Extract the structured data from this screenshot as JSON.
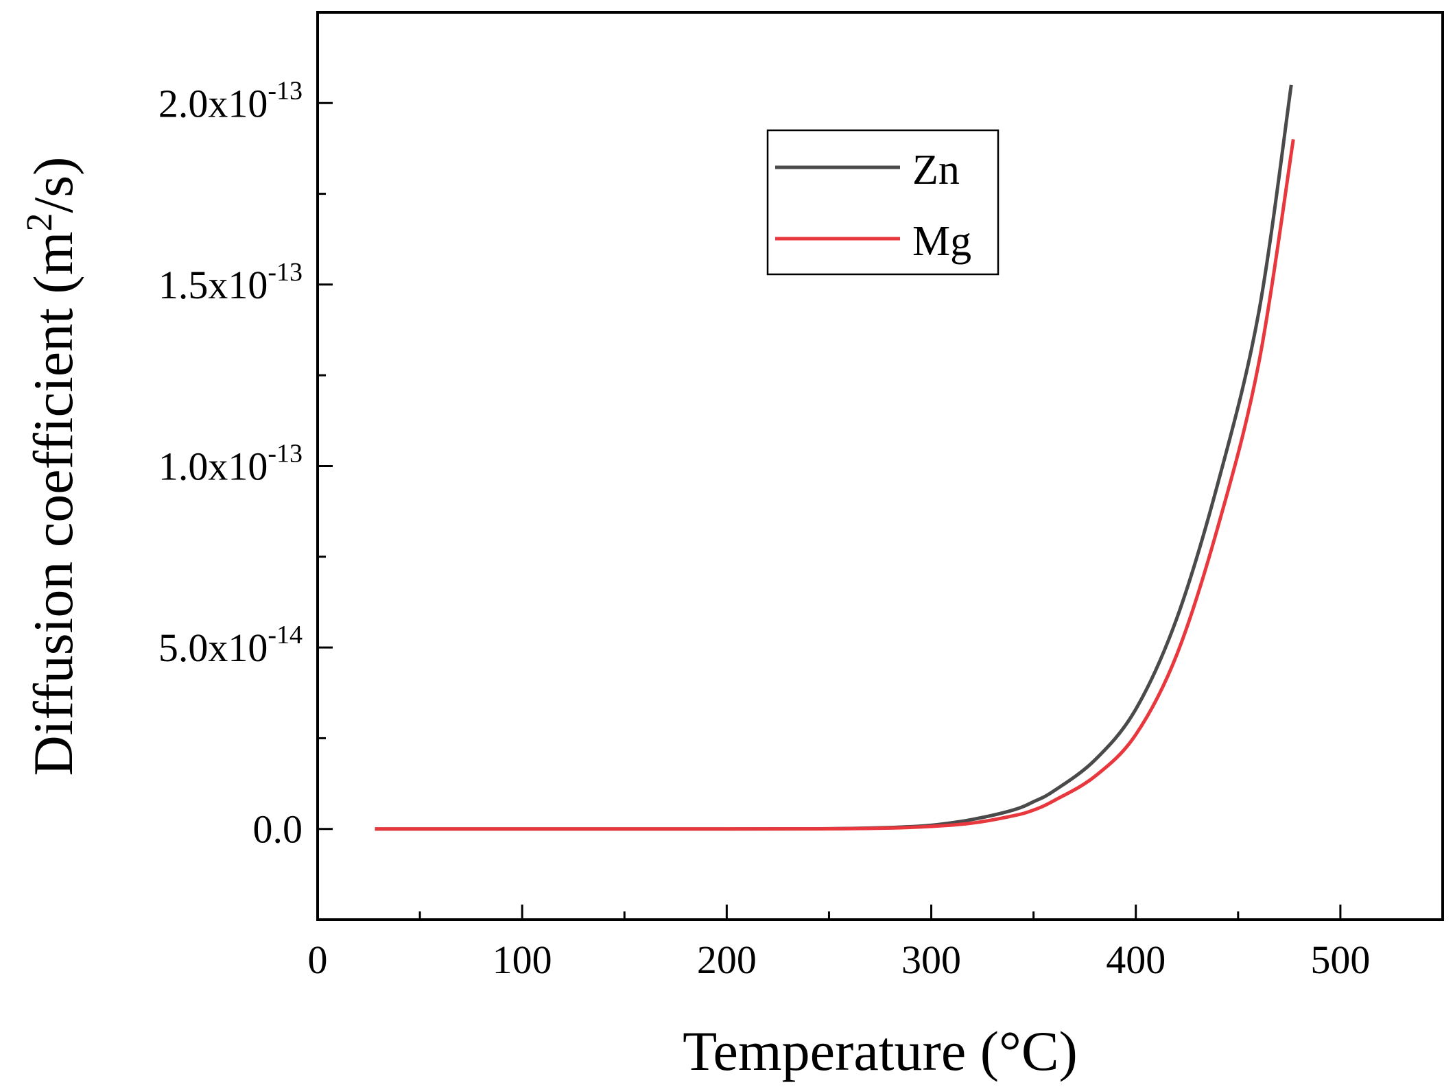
{
  "chart_data": {
    "type": "line",
    "title": "",
    "xlabel": "Temperature (°C)",
    "ylabel": {
      "main": "Diffusion coefficient (m",
      "sup": "2",
      "tail": "/s)"
    },
    "xlim": [
      0,
      550
    ],
    "ylim": [
      -2.5e-14,
      2.25e-13
    ],
    "x_ticks": [
      {
        "value": 0,
        "label": "0"
      },
      {
        "value": 100,
        "label": "100"
      },
      {
        "value": 200,
        "label": "200"
      },
      {
        "value": 300,
        "label": "300"
      },
      {
        "value": 400,
        "label": "400"
      },
      {
        "value": 500,
        "label": "500"
      }
    ],
    "y_ticks": [
      {
        "value": 0,
        "mantissa": "0.0",
        "exp": ""
      },
      {
        "value": 5e-14,
        "mantissa": "5.0x10",
        "exp": "-14"
      },
      {
        "value": 1e-13,
        "mantissa": "1.0x10",
        "exp": "-13"
      },
      {
        "value": 1.5e-13,
        "mantissa": "1.5x10",
        "exp": "-13"
      },
      {
        "value": 2e-13,
        "mantissa": "2.0x10",
        "exp": "-13"
      }
    ],
    "grid": false,
    "legend_position": "top-center",
    "series": [
      {
        "name": "Zn",
        "color": "#4a4a4a",
        "x": [
          28,
          100,
          200,
          250,
          280,
          300,
          320,
          340,
          350,
          360,
          380,
          400,
          420,
          440,
          460,
          476
        ],
        "values": [
          0,
          0,
          0,
          5e-17,
          4e-16,
          1e-15,
          2.6e-15,
          5.2e-15,
          7.5e-15,
          1.05e-14,
          1.9e-14,
          3.3e-14,
          5.8e-14,
          9.5e-14,
          1.42e-13,
          2.05e-13
        ]
      },
      {
        "name": "Mg",
        "color": "#e8383d",
        "x": [
          28,
          100,
          200,
          250,
          280,
          300,
          320,
          340,
          350,
          360,
          380,
          400,
          420,
          440,
          460,
          477
        ],
        "values": [
          0,
          0,
          0,
          3e-17,
          2.5e-16,
          7e-16,
          1.6e-15,
          3.6e-15,
          5.2e-15,
          7.8e-15,
          1.45e-14,
          2.6e-14,
          4.8e-14,
          8.3e-14,
          1.28e-13,
          1.9e-13
        ]
      }
    ]
  }
}
